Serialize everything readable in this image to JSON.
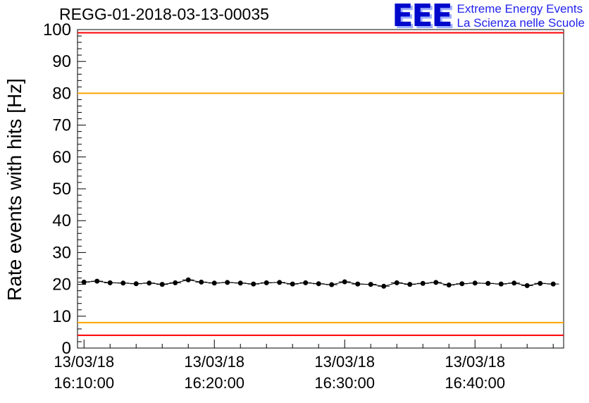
{
  "logo": {
    "text": "EEE",
    "line1": "Extreme Energy Events",
    "line2": "La Scienza nelle Scuole",
    "text_color": "#0008cc",
    "subtitle_color": "#2222ee"
  },
  "chart_data": {
    "type": "scatter",
    "title": "REGG-01-2018-03-13-00035",
    "xlabel": "",
    "ylabel": "Rate events with hits [Hz]",
    "ylim": [
      0,
      100
    ],
    "y_ticks": [
      0,
      10,
      20,
      30,
      40,
      50,
      60,
      70,
      80,
      90,
      100
    ],
    "y_minor_step": 2,
    "x_unit": "minutes after 16:00 on 13/03/18",
    "x_range_minutes": [
      9.5,
      46.8
    ],
    "x_minor_step_minutes": 2,
    "x_tick_labels": [
      {
        "minute": 10,
        "date": "13/03/18",
        "time": "16:10:00"
      },
      {
        "minute": 20,
        "date": "13/03/18",
        "time": "16:20:00"
      },
      {
        "minute": 30,
        "date": "13/03/18",
        "time": "16:30:00"
      },
      {
        "minute": 40,
        "date": "13/03/18",
        "time": "16:40:00"
      }
    ],
    "grid": false,
    "legend": "none",
    "thresholds": [
      {
        "value": 99,
        "color": "#ff0000",
        "name": "upper-alarm"
      },
      {
        "value": 80,
        "color": "#ffa500",
        "name": "upper-warning"
      },
      {
        "value": 8,
        "color": "#ffa500",
        "name": "lower-warning"
      },
      {
        "value": 4,
        "color": "#ff0000",
        "name": "lower-alarm"
      }
    ],
    "series": [
      {
        "name": "rate-events-with-hits",
        "marker": "filled-circle",
        "color": "#000000",
        "x_error": 0.45,
        "y_error": 0.5,
        "x_minutes": [
          10,
          11,
          12,
          13,
          14,
          15,
          16,
          17,
          18,
          19,
          20,
          21,
          22,
          23,
          24,
          25,
          26,
          27,
          28,
          29,
          30,
          31,
          32,
          33,
          34,
          35,
          36,
          37,
          38,
          39,
          40,
          41,
          42,
          43,
          44,
          45,
          46
        ],
        "values": [
          20.7,
          21.0,
          20.5,
          20.4,
          20.2,
          20.4,
          20.0,
          20.5,
          21.4,
          20.7,
          20.4,
          20.6,
          20.4,
          20.1,
          20.5,
          20.6,
          20.1,
          20.5,
          20.2,
          19.9,
          20.8,
          20.1,
          20.0,
          19.4,
          20.5,
          20.0,
          20.3,
          20.6,
          19.8,
          20.2,
          20.4,
          20.3,
          20.1,
          20.4,
          19.6,
          20.3,
          20.1
        ]
      }
    ]
  }
}
